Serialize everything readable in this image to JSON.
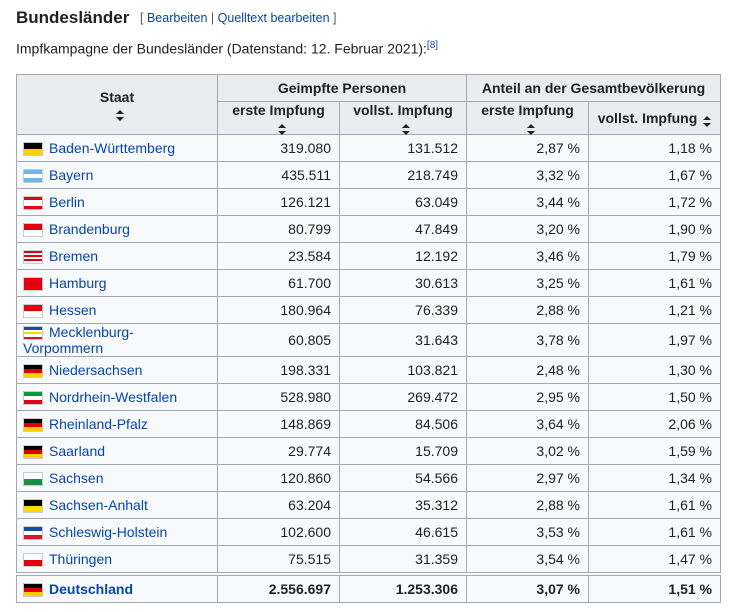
{
  "heading": "Bundesländer",
  "edit_links": {
    "open": "[",
    "edit": "Bearbeiten",
    "separator": "|",
    "source": "Quelltext bearbeiten",
    "close": "]"
  },
  "intro": {
    "text": "Impfkampagne der Bundesländer (Datenstand: 12. Februar 2021):",
    "ref": "[8]"
  },
  "table": {
    "header": [
      "Staat",
      "Geimpfte Personen",
      "Anteil an der Gesamtbevölkerung"
    ],
    "subheader": [
      "erste Impfung",
      "vollst. Impfung",
      "erste Impfung",
      "vollst. Impfung"
    ],
    "rows": [
      [
        "Baden-Württemberg",
        "319.080",
        "131.512",
        "2,87 %",
        "1,18 %"
      ],
      [
        "Bayern",
        "435.511",
        "218.749",
        "3,32 %",
        "1,67 %"
      ],
      [
        "Berlin",
        "126.121",
        "63.049",
        "3,44 %",
        "1,72 %"
      ],
      [
        "Brandenburg",
        "80.799",
        "47.849",
        "3,20 %",
        "1,90 %"
      ],
      [
        "Bremen",
        "23.584",
        "12.192",
        "3,46 %",
        "1,79 %"
      ],
      [
        "Hamburg",
        "61.700",
        "30.613",
        "3,25 %",
        "1,61 %"
      ],
      [
        "Hessen",
        "180.964",
        "76.339",
        "2,88 %",
        "1,21 %"
      ],
      [
        "Mecklenburg-Vorpommern",
        "60.805",
        "31.643",
        "3,78 %",
        "1,97 %"
      ],
      [
        "Niedersachsen",
        "198.331",
        "103.821",
        "2,48 %",
        "1,30 %"
      ],
      [
        "Nordrhein-Westfalen",
        "528.980",
        "269.472",
        "2,95 %",
        "1,50 %"
      ],
      [
        "Rheinland-Pfalz",
        "148.869",
        "84.506",
        "3,64 %",
        "2,06 %"
      ],
      [
        "Saarland",
        "29.774",
        "15.709",
        "3,02 %",
        "1,59 %"
      ],
      [
        "Sachsen",
        "120.860",
        "54.566",
        "2,97 %",
        "1,34 %"
      ],
      [
        "Sachsen-Anhalt",
        "63.204",
        "35.312",
        "2,88 %",
        "1,61 %"
      ],
      [
        "Schleswig-Holstein",
        "102.600",
        "46.615",
        "3,53 %",
        "1,61 %"
      ],
      [
        "Thüringen",
        "75.515",
        "31.359",
        "3,54 %",
        "1,47 %"
      ]
    ],
    "total": [
      "Deutschland",
      "2.556.697",
      "1.253.306",
      "3,07 %",
      "1,51 %"
    ]
  }
}
